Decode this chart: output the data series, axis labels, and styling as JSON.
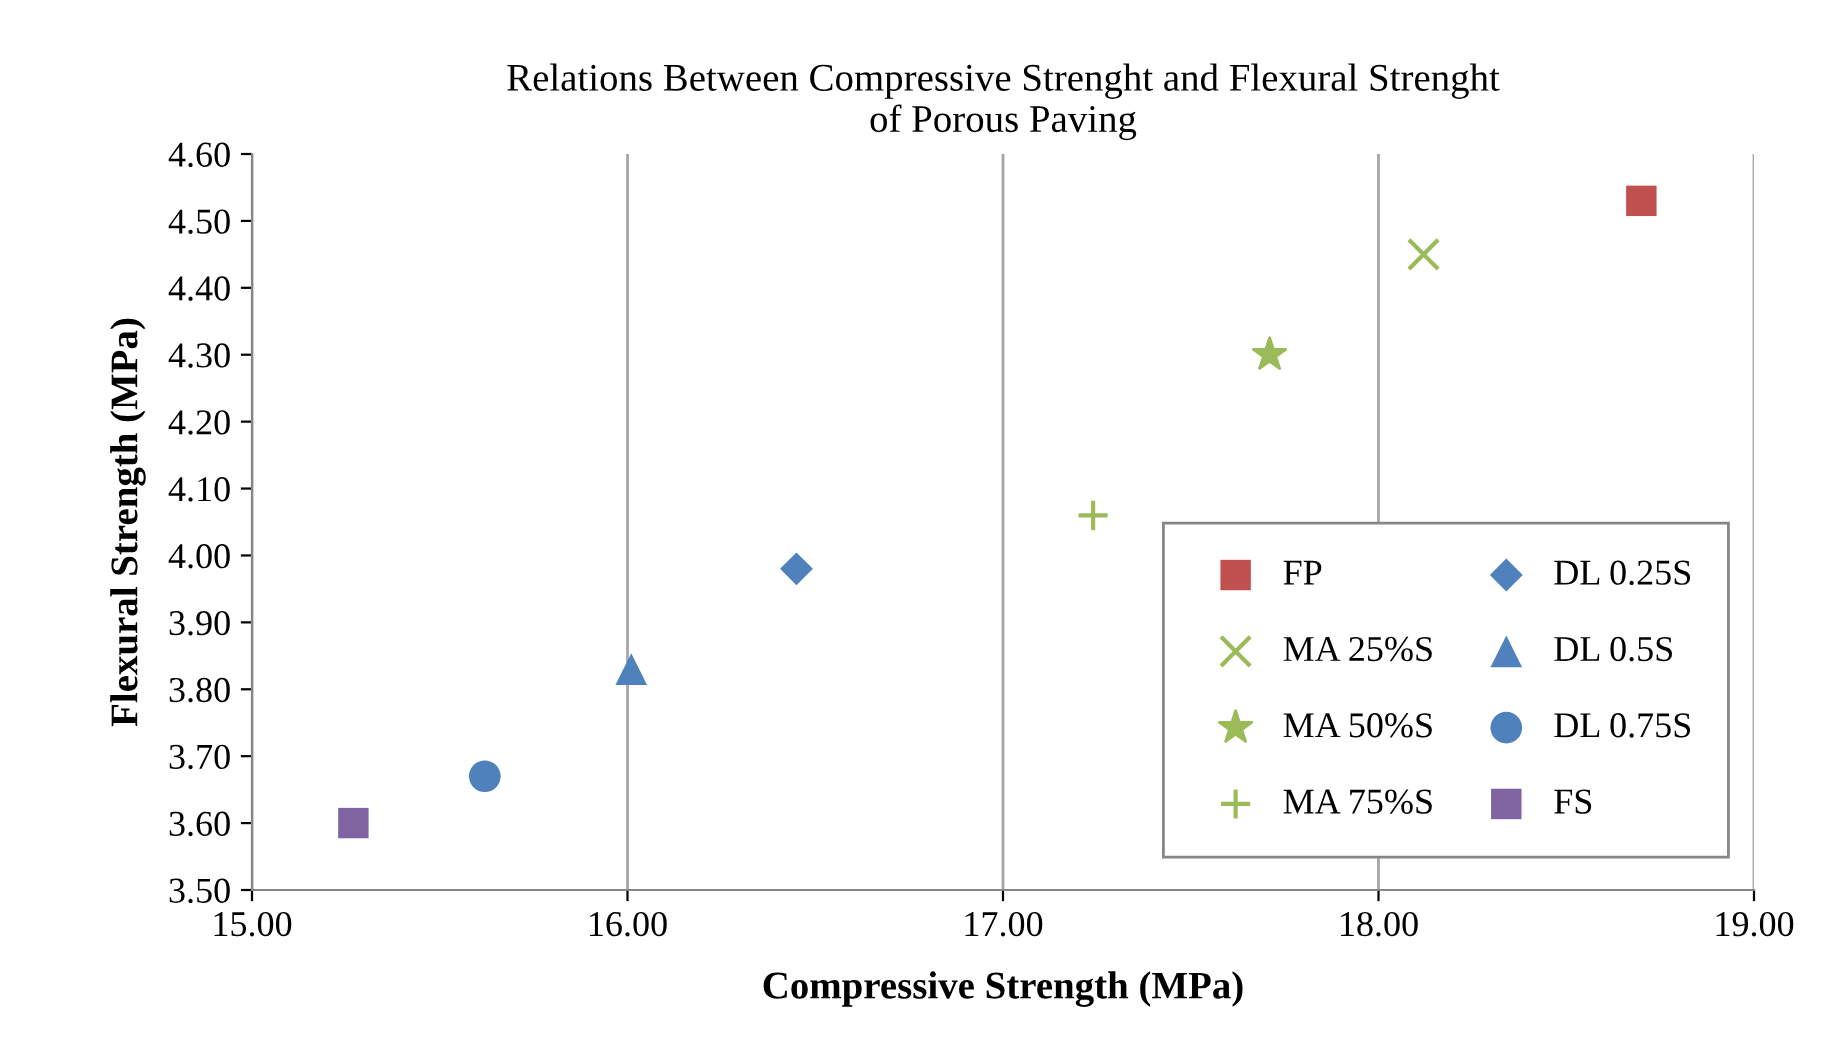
{
  "chart_data": {
    "type": "scatter",
    "title": "Relations Between Compressive Strenght and Flexural Strenght\nof Porous Paving",
    "xlabel": "Compressive Strength (MPa)",
    "ylabel": "Flexural Strength (MPa)",
    "xlim": [
      15,
      19
    ],
    "xticks": [
      {
        "value": 15,
        "label": "15.00"
      },
      {
        "value": 16,
        "label": "16.00"
      },
      {
        "value": 17,
        "label": "17.00"
      },
      {
        "value": 18,
        "label": "18.00"
      },
      {
        "value": 19,
        "label": "19.00"
      }
    ],
    "ylim": [
      3.5,
      4.6
    ],
    "yticks": [
      {
        "value": 3.5,
        "label": "3.50"
      },
      {
        "value": 3.6,
        "label": "3.60"
      },
      {
        "value": 3.7,
        "label": "3.70"
      },
      {
        "value": 3.8,
        "label": "3.80"
      },
      {
        "value": 3.9,
        "label": "3.90"
      },
      {
        "value": 4.0,
        "label": "4.00"
      },
      {
        "value": 4.1,
        "label": "4.10"
      },
      {
        "value": 4.2,
        "label": "4.20"
      },
      {
        "value": 4.3,
        "label": "4.30"
      },
      {
        "value": 4.4,
        "label": "4.40"
      },
      {
        "value": 4.5,
        "label": "4.50"
      },
      {
        "value": 4.6,
        "label": "4.60"
      }
    ],
    "grid": "x",
    "legend": "bottom right",
    "series": [
      {
        "name": "FP",
        "color": "#c0504d",
        "marker": "square",
        "x": [
          18.7
        ],
        "values": [
          4.53
        ]
      },
      {
        "name": "MA 25%S",
        "color": "#9bbb59",
        "marker": "cross",
        "x": [
          18.12
        ],
        "values": [
          4.45
        ]
      },
      {
        "name": "MA 50%S",
        "color": "#9bbb59",
        "marker": "star",
        "x": [
          17.71
        ],
        "values": [
          4.3
        ]
      },
      {
        "name": "MA 75%S",
        "color": "#9bbb59",
        "marker": "plus",
        "x": [
          17.24
        ],
        "values": [
          4.06
        ]
      },
      {
        "name": "DL 0.25S",
        "color": "#4f81bd",
        "marker": "diamond",
        "x": [
          16.45
        ],
        "values": [
          3.98
        ]
      },
      {
        "name": "DL 0.5S",
        "color": "#4f81bd",
        "marker": "triangle",
        "x": [
          16.01
        ],
        "values": [
          3.83
        ]
      },
      {
        "name": "DL 0.75S",
        "color": "#4f81bd",
        "marker": "circle",
        "x": [
          15.62
        ],
        "values": [
          3.67
        ]
      },
      {
        "name": "FS",
        "color": "#8064a2",
        "marker": "square",
        "x": [
          15.27
        ],
        "values": [
          3.6
        ]
      }
    ]
  }
}
